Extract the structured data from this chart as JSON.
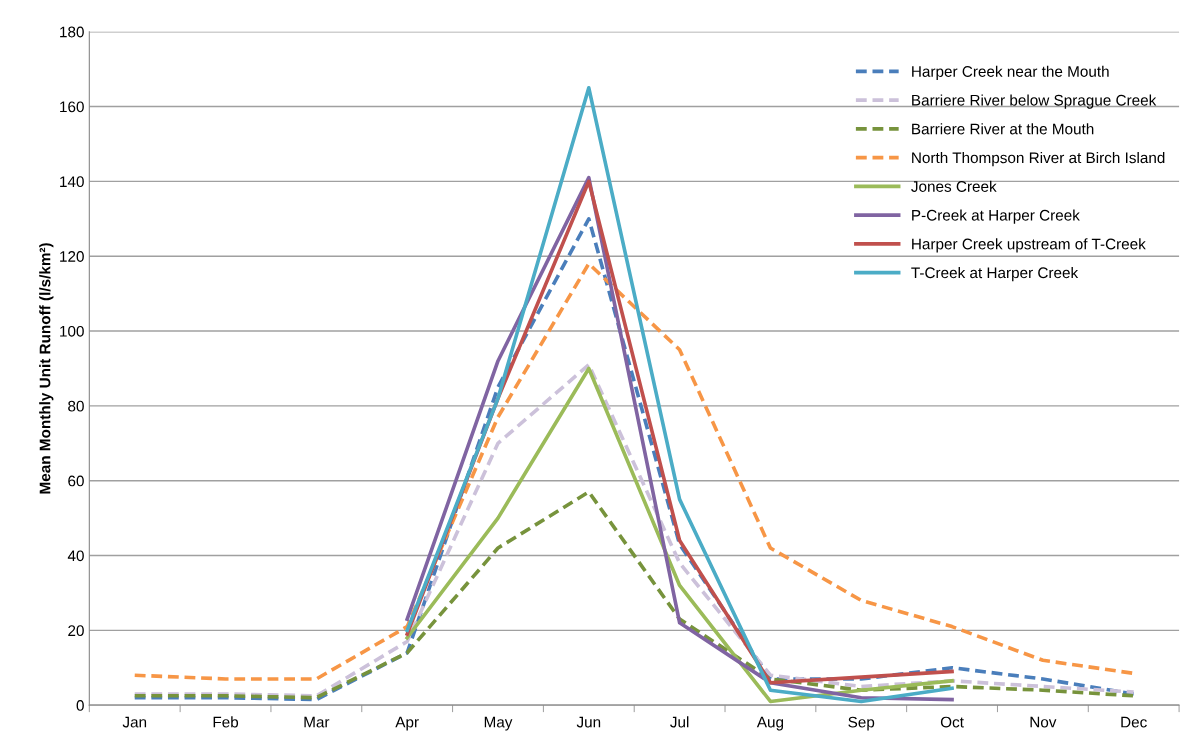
{
  "chart_data": {
    "type": "line",
    "ylabel": "Mean Monthly Unit Runoff (l/s/km²)",
    "categories": [
      "Jan",
      "Feb",
      "Mar",
      "Apr",
      "May",
      "Jun",
      "Jul",
      "Aug",
      "Sep",
      "Oct",
      "Nov",
      "Dec"
    ],
    "ylim": [
      0,
      180
    ],
    "yticks": [
      0,
      20,
      40,
      60,
      80,
      100,
      120,
      140,
      160,
      180
    ],
    "grid": "y",
    "legend": "top right",
    "marker": "none",
    "series": [
      {
        "name": "Harper Creek near the Mouth",
        "color": "#4a7ebb",
        "line_style": "dashed",
        "values": [
          2,
          2,
          1.5,
          14,
          85,
          130,
          43,
          7,
          7,
          10,
          7,
          3
        ]
      },
      {
        "name": "Barriere River below Sprague Creek",
        "color": "#ccc1da",
        "line_style": "dashed",
        "values": [
          3,
          3,
          2.5,
          17,
          70,
          91,
          38,
          8,
          5,
          6.5,
          5,
          3.5
        ]
      },
      {
        "name": "Barriere River at the Mouth",
        "color": "#77933c",
        "line_style": "dashed",
        "values": [
          2.5,
          2.5,
          2,
          14,
          42,
          57,
          23,
          7,
          4,
          5,
          4,
          2.5
        ]
      },
      {
        "name": "North Thompson River at Birch Island",
        "color": "#f79646",
        "line_style": "dashed",
        "values": [
          8,
          7,
          7,
          21,
          77,
          118,
          95,
          42,
          28,
          21,
          12,
          8.5
        ]
      },
      {
        "name": "Jones Creek",
        "color": "#9bbb59",
        "line_style": "solid",
        "values": [
          null,
          null,
          null,
          18,
          50,
          90,
          32,
          1,
          4,
          6.5,
          null,
          null
        ]
      },
      {
        "name": "P-Creek at Harper Creek",
        "color": "#8064a2",
        "line_style": "solid",
        "values": [
          null,
          null,
          null,
          23,
          92,
          141,
          22,
          6,
          2,
          1.5,
          null,
          null
        ]
      },
      {
        "name": "Harper Creek upstream of T-Creek",
        "color": "#c0504d",
        "line_style": "solid",
        "values": [
          null,
          null,
          null,
          19,
          82,
          140,
          44,
          6,
          7.5,
          9,
          null,
          null
        ]
      },
      {
        "name": "T-Creek at Harper Creek",
        "color": "#4bacc6",
        "line_style": "solid",
        "values": [
          null,
          null,
          null,
          20,
          82,
          165,
          55,
          4,
          1,
          4.5,
          null,
          null
        ]
      }
    ]
  }
}
